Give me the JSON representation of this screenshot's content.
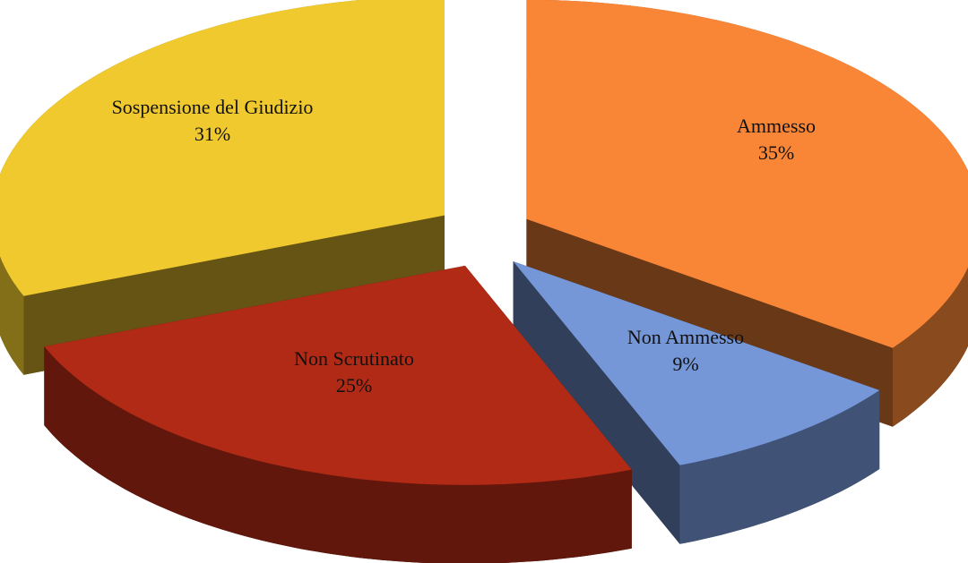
{
  "chart_data": {
    "type": "pie3d",
    "categories": [
      "Ammesso",
      "Non Ammesso",
      "Non Scrutinato",
      "Sospensione del Giudizio"
    ],
    "values": [
      35,
      9,
      25,
      31
    ],
    "value_labels": [
      "35%",
      "9%",
      "25%",
      "31%"
    ],
    "colors": [
      "#f98637",
      "#7597d8",
      "#b02a16",
      "#f0c92e"
    ]
  }
}
